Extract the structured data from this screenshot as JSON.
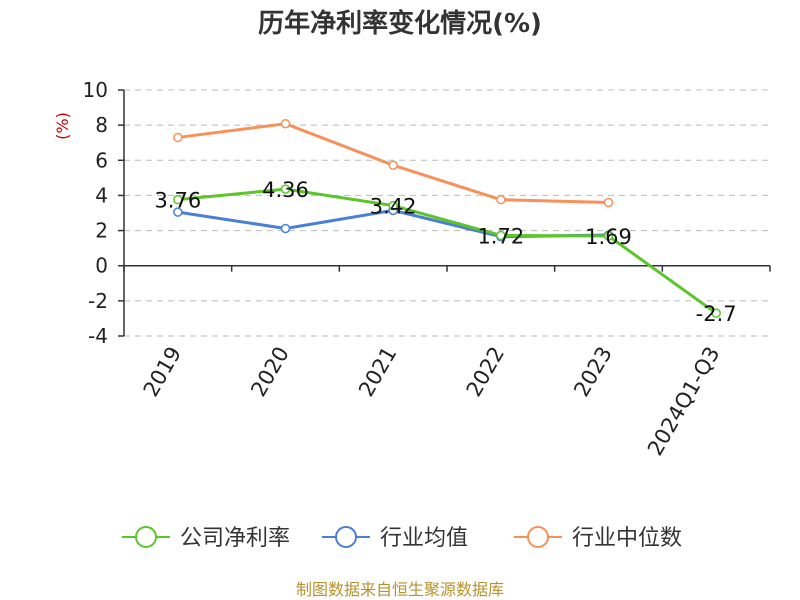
{
  "chart_data": {
    "type": "line",
    "title": "历年净利率变化情况(%)",
    "ylabel": "(%)",
    "xlabel": "",
    "categories": [
      "2019",
      "2020",
      "2021",
      "2022",
      "2023",
      "2024Q1-Q3"
    ],
    "ylim": [
      -4,
      10
    ],
    "yticks": [
      10,
      8,
      6,
      4,
      2,
      0,
      -2,
      -4
    ],
    "grid": true,
    "legend_position": "bottom",
    "series": [
      {
        "name": "公司净利率",
        "color": "#5bc52a",
        "values": [
          3.76,
          4.36,
          3.42,
          1.72,
          1.69,
          -2.7
        ],
        "labels": [
          "3.76",
          "4.36",
          "3.42",
          "1.72",
          "1.69",
          "-2.7"
        ]
      },
      {
        "name": "行业均值",
        "color": "#4a7fd8",
        "values": [
          3.05,
          2.12,
          3.15,
          1.65,
          1.75,
          null
        ]
      },
      {
        "name": "行业中位数",
        "color": "#f7915a",
        "values": [
          7.3,
          8.08,
          5.72,
          3.76,
          3.6,
          null
        ]
      }
    ]
  },
  "footer": {
    "source": "制图数据来自恒生聚源数据库"
  }
}
